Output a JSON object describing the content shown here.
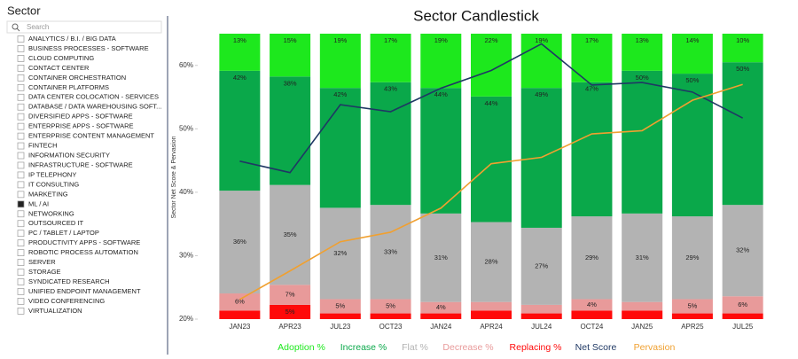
{
  "sidebar": {
    "title": "Sector",
    "search_placeholder": "Search",
    "items": [
      "ANALYTICS / B.I. / BIG DATA",
      "BUSINESS PROCESSES - SOFTWARE",
      "CLOUD COMPUTING",
      "CONTACT CENTER",
      "CONTAINER ORCHESTRATION",
      "CONTAINER PLATFORMS",
      "DATA CENTER COLOCATION - SERVICES",
      "DATABASE / DATA WAREHOUSING SOFT...",
      "DIVERSIFIED APPS - SOFTWARE",
      "ENTERPRISE APPS - SOFTWARE",
      "ENTERPRISE CONTENT MANAGEMENT",
      "FINTECH",
      "INFORMATION SECURITY",
      "INFRASTRUCTURE - SOFTWARE",
      "IP TELEPHONY",
      "IT CONSULTING",
      "MARKETING",
      "ML / AI",
      "NETWORKING",
      "OUTSOURCED IT",
      "PC / TABLET / LAPTOP",
      "PRODUCTIVITY APPS - SOFTWARE",
      "ROBOTIC PROCESS AUTOMATION",
      "SERVER",
      "STORAGE",
      "SYNDICATED RESEARCH",
      "UNIFIED ENDPOINT MANAGEMENT",
      "VIDEO CONFERENCING",
      "VIRTUALIZATION"
    ],
    "selected": [
      false,
      false,
      false,
      false,
      false,
      false,
      false,
      false,
      false,
      false,
      false,
      false,
      false,
      false,
      false,
      false,
      false,
      true,
      false,
      false,
      false,
      false,
      false,
      false,
      false,
      false,
      false,
      false,
      false
    ]
  },
  "chart_data": {
    "type": "stacked-bar-line",
    "title": "Sector Candlestick",
    "y_label": "Sector Net Score & Pervasion",
    "categories": [
      "JAN23",
      "APR23",
      "JUL23",
      "OCT23",
      "JAN24",
      "APR24",
      "JUL24",
      "OCT24",
      "JAN25",
      "APR25",
      "JUL25"
    ],
    "ylim": [
      20,
      65
    ],
    "yticks": [
      {
        "value": 20,
        "label": "20%"
      },
      {
        "value": 30,
        "label": "30%"
      },
      {
        "value": 40,
        "label": "40%"
      },
      {
        "value": 50,
        "label": "50%"
      },
      {
        "value": 60,
        "label": "60%"
      }
    ],
    "y2lim": [
      0,
      100
    ],
    "series": [
      {
        "name": "Adoption %",
        "color": "#1de81d",
        "axis": "y2",
        "kind": "bar",
        "values": [
          13,
          15,
          19,
          17,
          19,
          22,
          19,
          17,
          13,
          14,
          10
        ],
        "value_labels": [
          "13%",
          "15%",
          "19%",
          "17%",
          "19%",
          "22%",
          "19%",
          "17%",
          "13%",
          "14%",
          "10%"
        ]
      },
      {
        "name": "Increase %",
        "color": "#0aa84a",
        "axis": "y2",
        "kind": "bar",
        "values": [
          42,
          38,
          42,
          43,
          44,
          44,
          49,
          47,
          50,
          50,
          50
        ],
        "value_labels": [
          "42%",
          "38%",
          "42%",
          "43%",
          "44%",
          "44%",
          "49%",
          "47%",
          "50%",
          "50%",
          "50%"
        ]
      },
      {
        "name": "Flat %",
        "color": "#b3b3b3",
        "axis": "y2",
        "kind": "bar",
        "values": [
          36,
          35,
          32,
          33,
          31,
          28,
          27,
          29,
          31,
          29,
          32
        ],
        "value_labels": [
          "36%",
          "35%",
          "32%",
          "33%",
          "31%",
          "28%",
          "27%",
          "29%",
          "31%",
          "29%",
          "32%"
        ]
      },
      {
        "name": "Decrease %",
        "color": "#e89a9a",
        "axis": "y2",
        "kind": "bar",
        "values": [
          6,
          7,
          5,
          5,
          4,
          3,
          3,
          4,
          3,
          5,
          6
        ],
        "value_labels": [
          "6%",
          "7%",
          "5%",
          "5%",
          "4%",
          null,
          null,
          "4%",
          null,
          "5%",
          "6%"
        ]
      },
      {
        "name": "Replacing %",
        "color": "#ff0a0a",
        "axis": "y2",
        "kind": "bar",
        "values": [
          3,
          5,
          2,
          2,
          2,
          3,
          2,
          3,
          3,
          2,
          2
        ],
        "value_labels": [
          null,
          "5%",
          null,
          null,
          null,
          null,
          null,
          null,
          null,
          null,
          null
        ]
      },
      {
        "name": "Net Score",
        "color": "#1f3864",
        "kind": "line",
        "values": [
          44.9,
          43.1,
          53.8,
          52.7,
          56.4,
          59.2,
          63.4,
          56.9,
          57.3,
          55.8,
          51.7
        ]
      },
      {
        "name": "Pervasion",
        "color": "#f0a030",
        "kind": "line",
        "values": [
          23.1,
          27.6,
          32.2,
          33.7,
          37.5,
          44.5,
          45.5,
          49.2,
          49.7,
          54.5,
          57
        ]
      }
    ]
  }
}
